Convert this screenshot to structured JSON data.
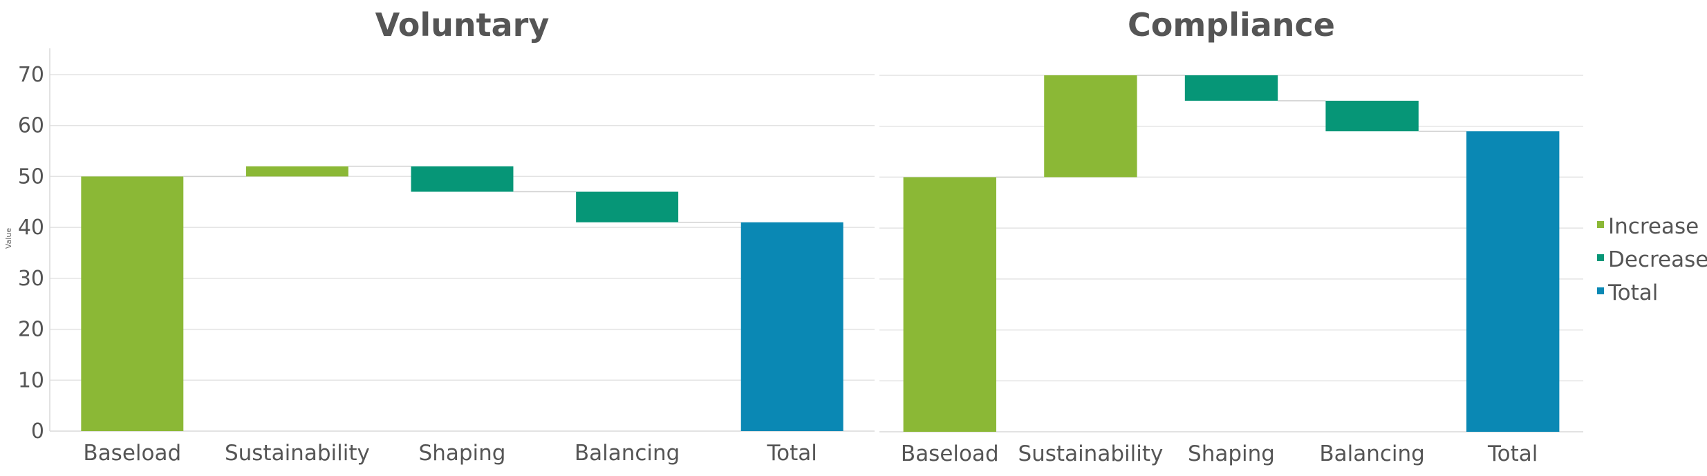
{
  "chart_data": {
    "type": "waterfall",
    "ylabel": "Value",
    "ylim": [
      0,
      75
    ],
    "yticks": [
      0,
      10,
      20,
      30,
      40,
      50,
      60,
      70
    ],
    "grid": true,
    "legend_placement": "right",
    "legend": [
      {
        "key": "increase",
        "label": "Increase",
        "color": "#8BB836"
      },
      {
        "key": "decrease",
        "label": "Decrease",
        "color": "#069677"
      },
      {
        "key": "total",
        "label": "Total",
        "color": "#0A88B4"
      }
    ],
    "panels": [
      {
        "title": "Voluntary",
        "categories": [
          "Baseload",
          "Sustainability",
          "Shaping",
          "Balancing",
          "Total"
        ],
        "steps": [
          {
            "kind": "increase",
            "value": 50
          },
          {
            "kind": "increase",
            "value": 2
          },
          {
            "kind": "decrease",
            "value": -5
          },
          {
            "kind": "decrease",
            "value": -6
          },
          {
            "kind": "total",
            "value": 41
          }
        ]
      },
      {
        "title": "Compliance",
        "categories": [
          "Baseload",
          "Sustainability",
          "Shaping",
          "Balancing",
          "Total"
        ],
        "steps": [
          {
            "kind": "increase",
            "value": 50
          },
          {
            "kind": "increase",
            "value": 20
          },
          {
            "kind": "decrease",
            "value": -5
          },
          {
            "kind": "decrease",
            "value": -6
          },
          {
            "kind": "total",
            "value": 59
          }
        ]
      }
    ]
  }
}
